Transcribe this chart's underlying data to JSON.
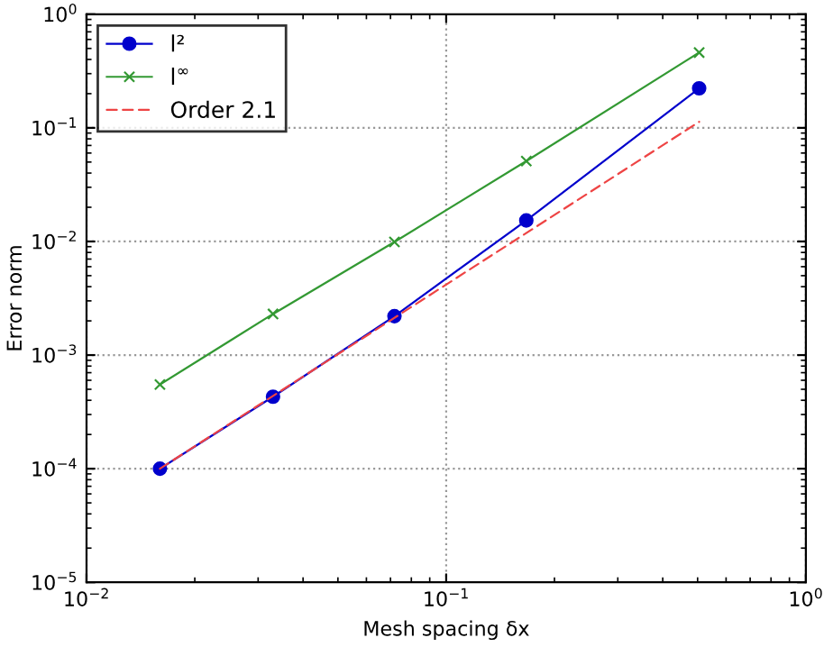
{
  "chart_data": {
    "type": "line",
    "xlabel": "Mesh spacing δx",
    "ylabel": "Error norm",
    "log": "xy",
    "xlim": [
      0.01,
      1
    ],
    "ylim": [
      1e-05,
      1
    ],
    "xticks": [
      {
        "value": 0.01,
        "label": "10$^{−2}$"
      },
      {
        "value": 0.1,
        "label": "10$^{−1}$"
      },
      {
        "value": 1,
        "label": "10$^{0}$"
      }
    ],
    "yticks": [
      {
        "value": 1e-05,
        "label": "10$^{−5}$"
      },
      {
        "value": 0.0001,
        "label": "10$^{−4}$"
      },
      {
        "value": 0.001,
        "label": "10$^{−3}$"
      },
      {
        "value": 0.01,
        "label": "10$^{−2}$"
      },
      {
        "value": 0.1,
        "label": "10$^{−1}$"
      },
      {
        "value": 1,
        "label": "10$^{0}$"
      }
    ],
    "grid": true,
    "legend": "top left",
    "series": [
      {
        "name": "l²",
        "color": "#0000cc",
        "marker": "circle",
        "line_style": "solid",
        "x": [
          0.016,
          0.033,
          0.0718,
          0.167,
          0.505
        ],
        "values": [
          0.0001,
          0.00043,
          0.0022,
          0.0153,
          0.223
        ]
      },
      {
        "name": "l$^{∞}$",
        "color": "#339933",
        "marker": "cross",
        "line_style": "solid",
        "x": [
          0.016,
          0.033,
          0.0718,
          0.167,
          0.505
        ],
        "values": [
          0.00055,
          0.0023,
          0.0099,
          0.051,
          0.46
        ]
      },
      {
        "name": "Order 2.1",
        "color": "#ee4444",
        "marker": "none",
        "line_style": "dashed",
        "x": [
          0.016,
          0.505
        ],
        "values": [
          0.0001,
          0.113
        ]
      }
    ]
  }
}
